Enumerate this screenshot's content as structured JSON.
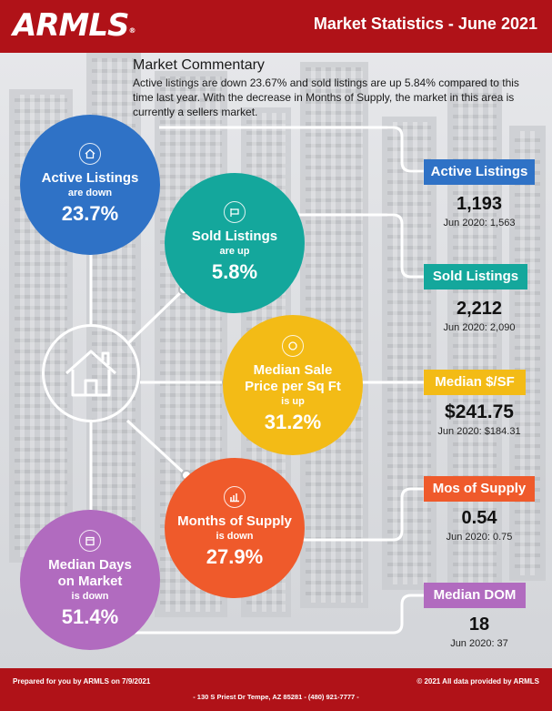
{
  "header": {
    "logo": "ARMLS",
    "title": "Market Statistics - June 2021"
  },
  "commentary": {
    "heading": "Market Commentary",
    "body": "Active listings are down 23.67% and sold listings are up 5.84% compared to this time last year. With the decrease in Months of Supply, the market in this area is currently a sellers market."
  },
  "circles": [
    {
      "icon": "house-icon",
      "label": "Active Listings",
      "sub": "are down",
      "pct": "23.7%",
      "color": "#2f72c6"
    },
    {
      "icon": "sold-sign-icon",
      "label": "Sold Listings",
      "sub": "are up",
      "pct": "5.8%",
      "color": "#14a79c"
    },
    {
      "icon": "coin-icon",
      "label1": "Median Sale",
      "label2": "Price per Sq Ft",
      "sub": "is up",
      "pct": "31.2%",
      "color": "#f3bb16"
    },
    {
      "icon": "chart-icon",
      "label": "Months of Supply",
      "sub": "is down",
      "pct": "27.9%",
      "color": "#ef5a2b"
    },
    {
      "icon": "calendar-icon",
      "label1": "Median Days",
      "label2": "on Market",
      "sub": "is down",
      "pct": "51.4%",
      "color": "#b16bbf"
    }
  ],
  "stats": [
    {
      "tag": "Active Listings",
      "value": "1,193",
      "prev": "Jun 2020: 1,563",
      "color": "#2f72c6"
    },
    {
      "tag": "Sold Listings",
      "value": "2,212",
      "prev": "Jun 2020: 2,090",
      "color": "#14a79c"
    },
    {
      "tag": "Median $/SF",
      "value": "$241.75",
      "prev": "Jun 2020: $184.31",
      "color": "#f3bb16"
    },
    {
      "tag": "Mos of Supply",
      "value": "0.54",
      "prev": "Jun 2020: 0.75",
      "color": "#ef5a2b"
    },
    {
      "tag": "Median DOM",
      "value": "18",
      "prev": "Jun 2020: 37",
      "color": "#b16bbf"
    }
  ],
  "footer": {
    "prepared": "Prepared for you by ARMLS on 7/9/2021",
    "copyright": "© 2021 All data provided by ARMLS",
    "address": "- 130 S Priest Dr   Tempe, AZ 85281 - (480) 921-7777 -"
  }
}
